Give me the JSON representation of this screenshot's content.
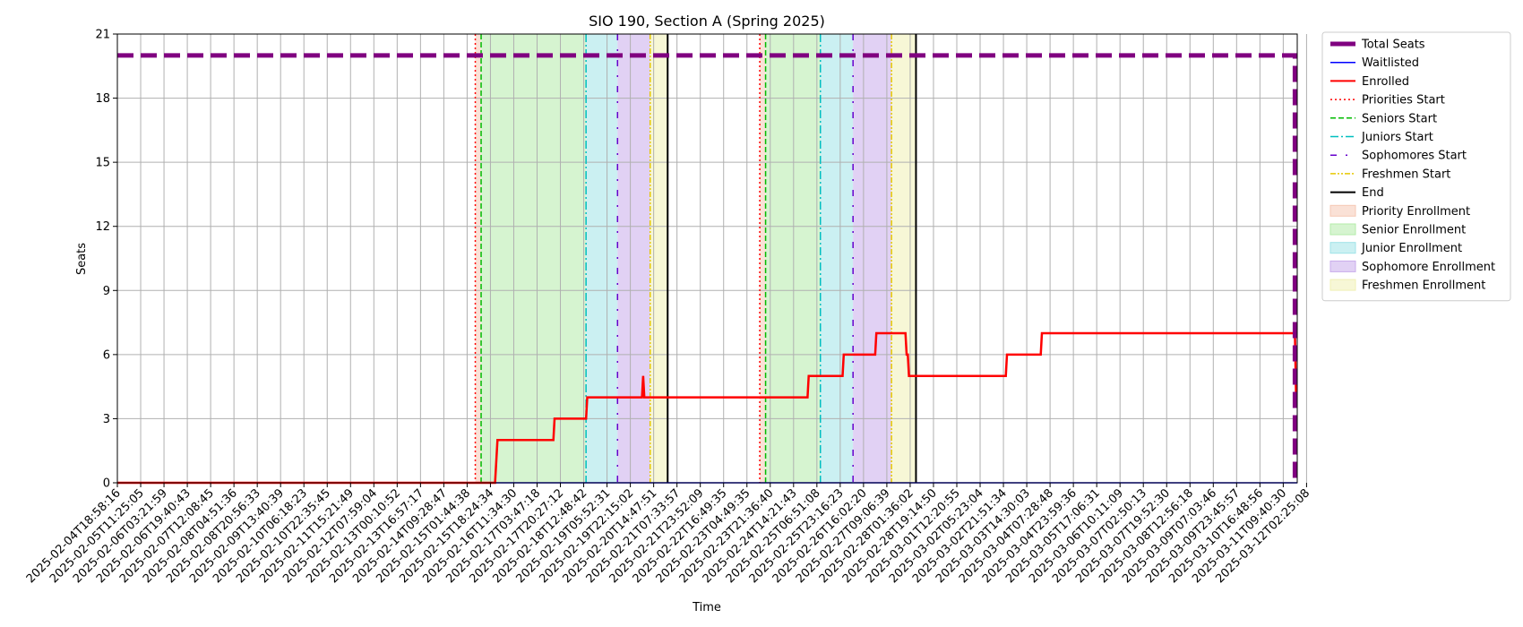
{
  "chart_data": {
    "type": "line",
    "title": "SIO 190, Section A (Spring 2025)",
    "xlabel": "Time",
    "ylabel": "Seats",
    "ylim": [
      0,
      21
    ],
    "yticks": [
      0,
      3,
      6,
      9,
      12,
      15,
      18,
      21
    ],
    "grid": true,
    "legend_position": "outside right, top",
    "x_tick_labels": [
      "2025-02-04T18:58:16",
      "2025-02-05T11:25:05",
      "2025-02-06T03:21:59",
      "2025-02-06T19:40:43",
      "2025-02-07T12:08:45",
      "2025-02-08T04:51:36",
      "2025-02-08T20:56:33",
      "2025-02-09T13:40:39",
      "2025-02-10T06:18:23",
      "2025-02-10T22:35:45",
      "2025-02-11T15:21:49",
      "2025-02-12T07:59:04",
      "2025-02-13T00:10:52",
      "2025-02-13T16:57:17",
      "2025-02-14T09:28:47",
      "2025-02-15T01:44:38",
      "2025-02-15T18:24:34",
      "2025-02-16T11:34:30",
      "2025-02-17T03:47:18",
      "2025-02-17T20:27:12",
      "2025-02-18T12:48:42",
      "2025-02-19T05:52:31",
      "2025-02-19T22:15:02",
      "2025-02-20T14:47:51",
      "2025-02-21T07:33:57",
      "2025-02-21T23:52:09",
      "2025-02-22T16:49:35",
      "2025-02-23T04:49:35",
      "2025-02-23T21:36:40",
      "2025-02-24T14:21:43",
      "2025-02-25T06:51:08",
      "2025-02-25T23:16:23",
      "2025-02-26T16:02:20",
      "2025-02-27T09:06:39",
      "2025-02-28T01:36:02",
      "2025-02-28T19:14:50",
      "2025-03-01T12:20:55",
      "2025-03-02T05:23:04",
      "2025-03-02T21:51:34",
      "2025-03-03T14:30:03",
      "2025-03-04T07:28:48",
      "2025-03-04T23:59:36",
      "2025-03-05T17:06:31",
      "2025-03-06T10:11:09",
      "2025-03-07T02:50:13",
      "2025-03-07T19:52:30",
      "2025-03-08T12:56:18",
      "2025-03-09T07:03:46",
      "2025-03-09T23:45:57",
      "2025-03-10T16:48:56",
      "2025-03-11T09:40:30",
      "2025-03-12T02:25:08"
    ],
    "x_range": [
      0,
      50.6
    ],
    "series": [
      {
        "name": "Total Seats",
        "color": "#800080",
        "style": "thick-dashed",
        "points": [
          [
            0,
            20
          ],
          [
            50.5,
            20
          ],
          [
            50.5,
            0
          ]
        ]
      },
      {
        "name": "Waitlisted",
        "color": "#0000ff",
        "style": "solid",
        "points": [
          [
            0,
            0
          ],
          [
            50.6,
            0
          ]
        ]
      },
      {
        "name": "Enrolled",
        "color": "#ff0000",
        "style": "solid",
        "points": [
          [
            0,
            0
          ],
          [
            16.2,
            0
          ],
          [
            16.3,
            2
          ],
          [
            18.7,
            2
          ],
          [
            18.75,
            3
          ],
          [
            20.1,
            3
          ],
          [
            20.15,
            4
          ],
          [
            22.5,
            4
          ],
          [
            22.55,
            5
          ],
          [
            22.6,
            4
          ],
          [
            29.6,
            4
          ],
          [
            29.65,
            5
          ],
          [
            31.1,
            5
          ],
          [
            31.15,
            6
          ],
          [
            32.5,
            6
          ],
          [
            32.55,
            7
          ],
          [
            33.8,
            7
          ],
          [
            33.85,
            6
          ],
          [
            33.9,
            6
          ],
          [
            33.95,
            5
          ],
          [
            38.1,
            5
          ],
          [
            38.15,
            6
          ],
          [
            39.6,
            6
          ],
          [
            39.65,
            7
          ],
          [
            50.5,
            7
          ],
          [
            50.55,
            4
          ]
        ]
      }
    ],
    "markers": [
      {
        "name": "Priorities Start",
        "color": "#ff0000",
        "style": "dotted",
        "x": [
          15.35,
          27.55
        ]
      },
      {
        "name": "Seniors Start",
        "color": "#00bb00",
        "style": "dashed",
        "x": [
          15.6,
          27.8
        ]
      },
      {
        "name": "Juniors Start",
        "color": "#00bfbf",
        "style": "dashdot",
        "x": [
          20.1,
          30.15
        ]
      },
      {
        "name": "Sophomores Start",
        "color": "#6600cc",
        "style": "loose-dashdot",
        "x": [
          21.45,
          31.55
        ]
      },
      {
        "name": "Freshmen Start",
        "color": "#e6c800",
        "style": "dashdotdot",
        "x": [
          22.85,
          33.2
        ]
      },
      {
        "name": "End",
        "color": "#000000",
        "style": "solid",
        "x": [
          23.6,
          34.25
        ]
      }
    ],
    "periods": [
      {
        "name": "Priority Enrollment",
        "color": "#f5c8b4",
        "ranges": [
          [
            15.35,
            15.6
          ],
          [
            27.55,
            27.8
          ]
        ]
      },
      {
        "name": "Senior Enrollment",
        "color": "#b4ebaa",
        "ranges": [
          [
            15.6,
            20.1
          ],
          [
            27.8,
            30.15
          ]
        ]
      },
      {
        "name": "Junior Enrollment",
        "color": "#a0e3e8",
        "ranges": [
          [
            20.1,
            21.45
          ],
          [
            30.15,
            31.55
          ]
        ]
      },
      {
        "name": "Sophomore Enrollment",
        "color": "#c9aceb",
        "ranges": [
          [
            21.45,
            22.85
          ],
          [
            31.55,
            33.2
          ]
        ]
      },
      {
        "name": "Freshmen Enrollment",
        "color": "#f0f0b4",
        "ranges": [
          [
            22.85,
            23.6
          ],
          [
            33.2,
            34.25
          ]
        ]
      }
    ]
  }
}
